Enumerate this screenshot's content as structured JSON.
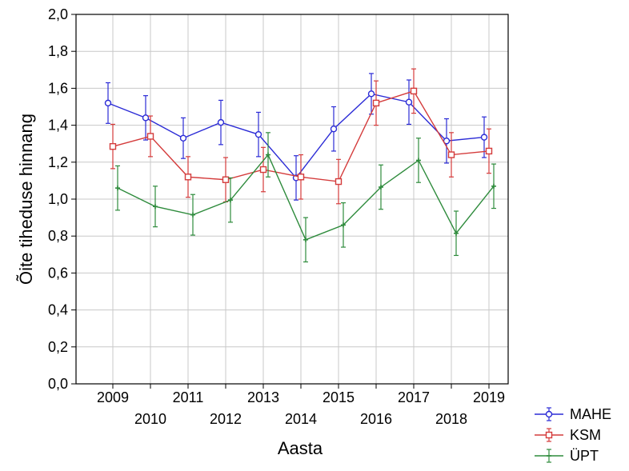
{
  "chart_data": {
    "type": "line",
    "xlabel": "Aasta",
    "ylabel": "Õite tiheduse hinnang",
    "ylim": [
      0.0,
      2.0
    ],
    "y_ticks": [
      "0,0",
      "0,2",
      "0,4",
      "0,6",
      "0,8",
      "1,0",
      "1,2",
      "1,4",
      "1,6",
      "1,8",
      "2,0"
    ],
    "categories": [
      "2009",
      "2010",
      "2011",
      "2012",
      "2013",
      "2014",
      "2015",
      "2016",
      "2017",
      "2018",
      "2019"
    ],
    "grid": true,
    "legend_position": "bottom-right",
    "series": [
      {
        "name": "MAHE",
        "color": "#2b2bd6",
        "marker": "circle",
        "values": [
          1.52,
          1.44,
          1.33,
          1.415,
          1.35,
          1.115,
          1.38,
          1.57,
          1.525,
          1.315,
          1.335
        ],
        "err": [
          0.11,
          0.12,
          0.11,
          0.12,
          0.12,
          0.12,
          0.12,
          0.11,
          0.12,
          0.12,
          0.11
        ]
      },
      {
        "name": "KSM",
        "color": "#d43b3b",
        "marker": "square",
        "values": [
          1.285,
          1.34,
          1.12,
          1.105,
          1.16,
          1.12,
          1.095,
          1.52,
          1.585,
          1.24,
          1.26
        ],
        "err": [
          0.12,
          0.11,
          0.11,
          0.12,
          0.12,
          0.12,
          0.12,
          0.12,
          0.12,
          0.12,
          0.12
        ]
      },
      {
        "name": "ÜPT",
        "color": "#2e8b3c",
        "marker": "cross",
        "values": [
          1.06,
          0.96,
          0.915,
          0.995,
          1.24,
          0.78,
          0.86,
          1.065,
          1.21,
          0.815,
          1.07
        ],
        "err": [
          0.12,
          0.11,
          0.11,
          0.12,
          0.12,
          0.12,
          0.12,
          0.12,
          0.12,
          0.12,
          0.12
        ]
      }
    ]
  }
}
